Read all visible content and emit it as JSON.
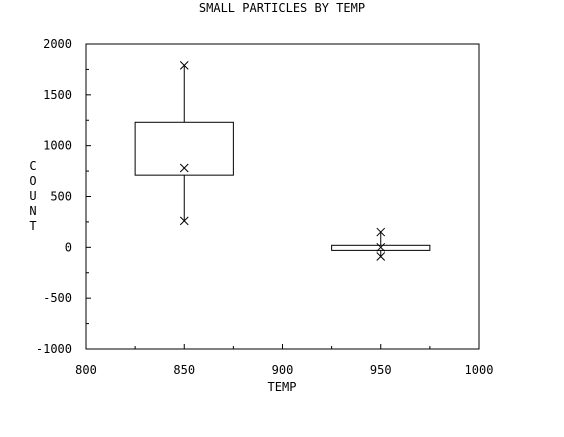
{
  "chart_data": {
    "type": "box",
    "title": "SMALL PARTICLES BY TEMP",
    "xlabel": "TEMP",
    "ylabel": "COUNT",
    "xlim": [
      800,
      1000
    ],
    "ylim": [
      -1000,
      2000
    ],
    "x_ticks": [
      800,
      850,
      900,
      950,
      1000
    ],
    "x_tick_labels": [
      "800",
      "850",
      "900",
      "950",
      "1000"
    ],
    "y_ticks": [
      -1000,
      -500,
      0,
      500,
      1000,
      1500,
      2000
    ],
    "y_tick_labels": [
      "-1000",
      "-500",
      "0",
      "500",
      "1000",
      "1500",
      "2000"
    ],
    "grid": false,
    "boxes": [
      {
        "x": 850,
        "q1": 710,
        "q3": 1230,
        "whisker_low": 260,
        "whisker_high": 1790,
        "points": [
          1790,
          780,
          260
        ]
      },
      {
        "x": 950,
        "q1": -30,
        "q3": 20,
        "whisker_low": -90,
        "whisker_high": 150,
        "points": [
          150,
          0,
          -90
        ]
      }
    ]
  }
}
